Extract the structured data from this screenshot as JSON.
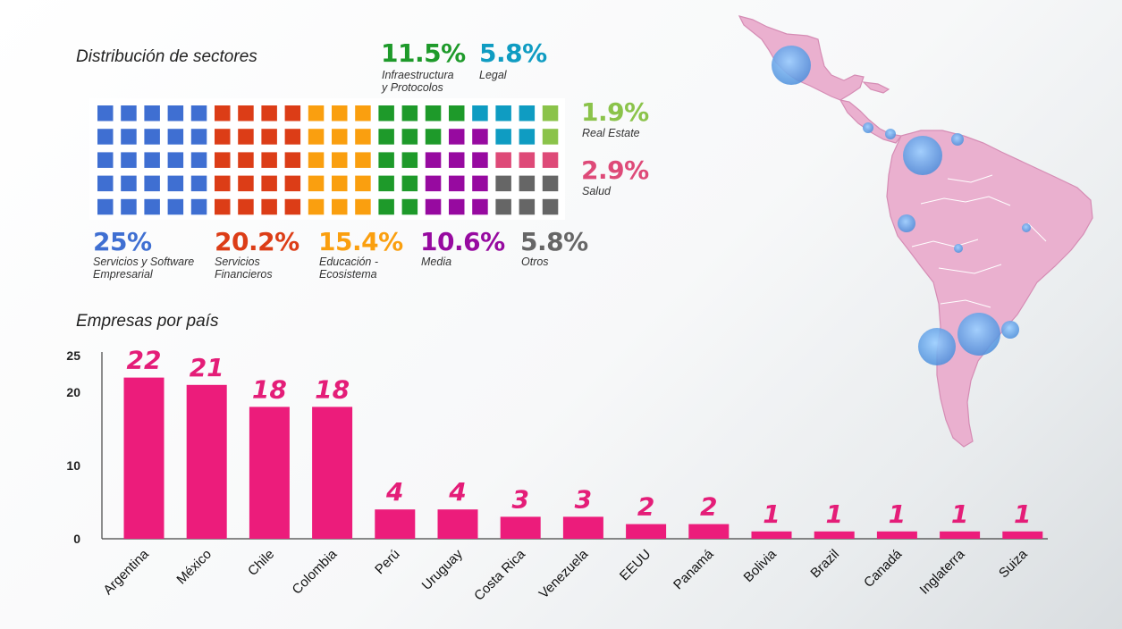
{
  "waffle": {
    "title": "Distribución de sectores",
    "sectors": [
      {
        "key": "services",
        "pct": "25%",
        "label": "Servicios y Software\nEmpresarial",
        "color": "#3f6fd2",
        "cells": 25
      },
      {
        "key": "financial",
        "pct": "20.2%",
        "label": "Servicios\nFinancieros",
        "color": "#dc3d17",
        "cells": 20
      },
      {
        "key": "education",
        "pct": "15.4%",
        "label": "Educación -\nEcosistema",
        "color": "#fa9f0f",
        "cells": 15
      },
      {
        "key": "infra",
        "pct": "11.5%",
        "label": "Infraestructura\ny Protocolos",
        "color": "#1e9a2a",
        "cells": 12
      },
      {
        "key": "media",
        "pct": "10.6%",
        "label": "Media",
        "color": "#970aa0",
        "cells": 11
      },
      {
        "key": "legal",
        "pct": "5.8%",
        "label": "Legal",
        "color": "#0f9cc2",
        "cells": 6
      },
      {
        "key": "others",
        "pct": "5.8%",
        "label": "Otros",
        "color": "#666666",
        "cells": 6
      },
      {
        "key": "health",
        "pct": "2.9%",
        "label": "Salud",
        "color": "#de4a78",
        "cells": 3
      },
      {
        "key": "realestate",
        "pct": "1.9%",
        "label": "Real Estate",
        "color": "#8bc34a",
        "cells": 2
      }
    ]
  },
  "chart_data": {
    "type": "bar",
    "title": "Empresas por país",
    "categories": [
      "Argentina",
      "México",
      "Chile",
      "Colombia",
      "Perú",
      "Uruguay",
      "Costa Rica",
      "Venezuela",
      "EEUU",
      "Panamá",
      "Bolivia",
      "Brazil",
      "Canadá",
      "Inglaterra",
      "Suiza"
    ],
    "values": [
      22,
      21,
      18,
      18,
      4,
      4,
      3,
      3,
      2,
      2,
      1,
      1,
      1,
      1,
      1
    ],
    "yticks": [
      0,
      10,
      20,
      25
    ],
    "ylim": [
      0,
      25
    ],
    "grid": false,
    "color": "#ec1c7b",
    "label_color": "#e41d78"
  },
  "map": {
    "fill": "#eab0cf",
    "stroke": "#d58cb4",
    "bubble_color": "#4c8fdc"
  }
}
